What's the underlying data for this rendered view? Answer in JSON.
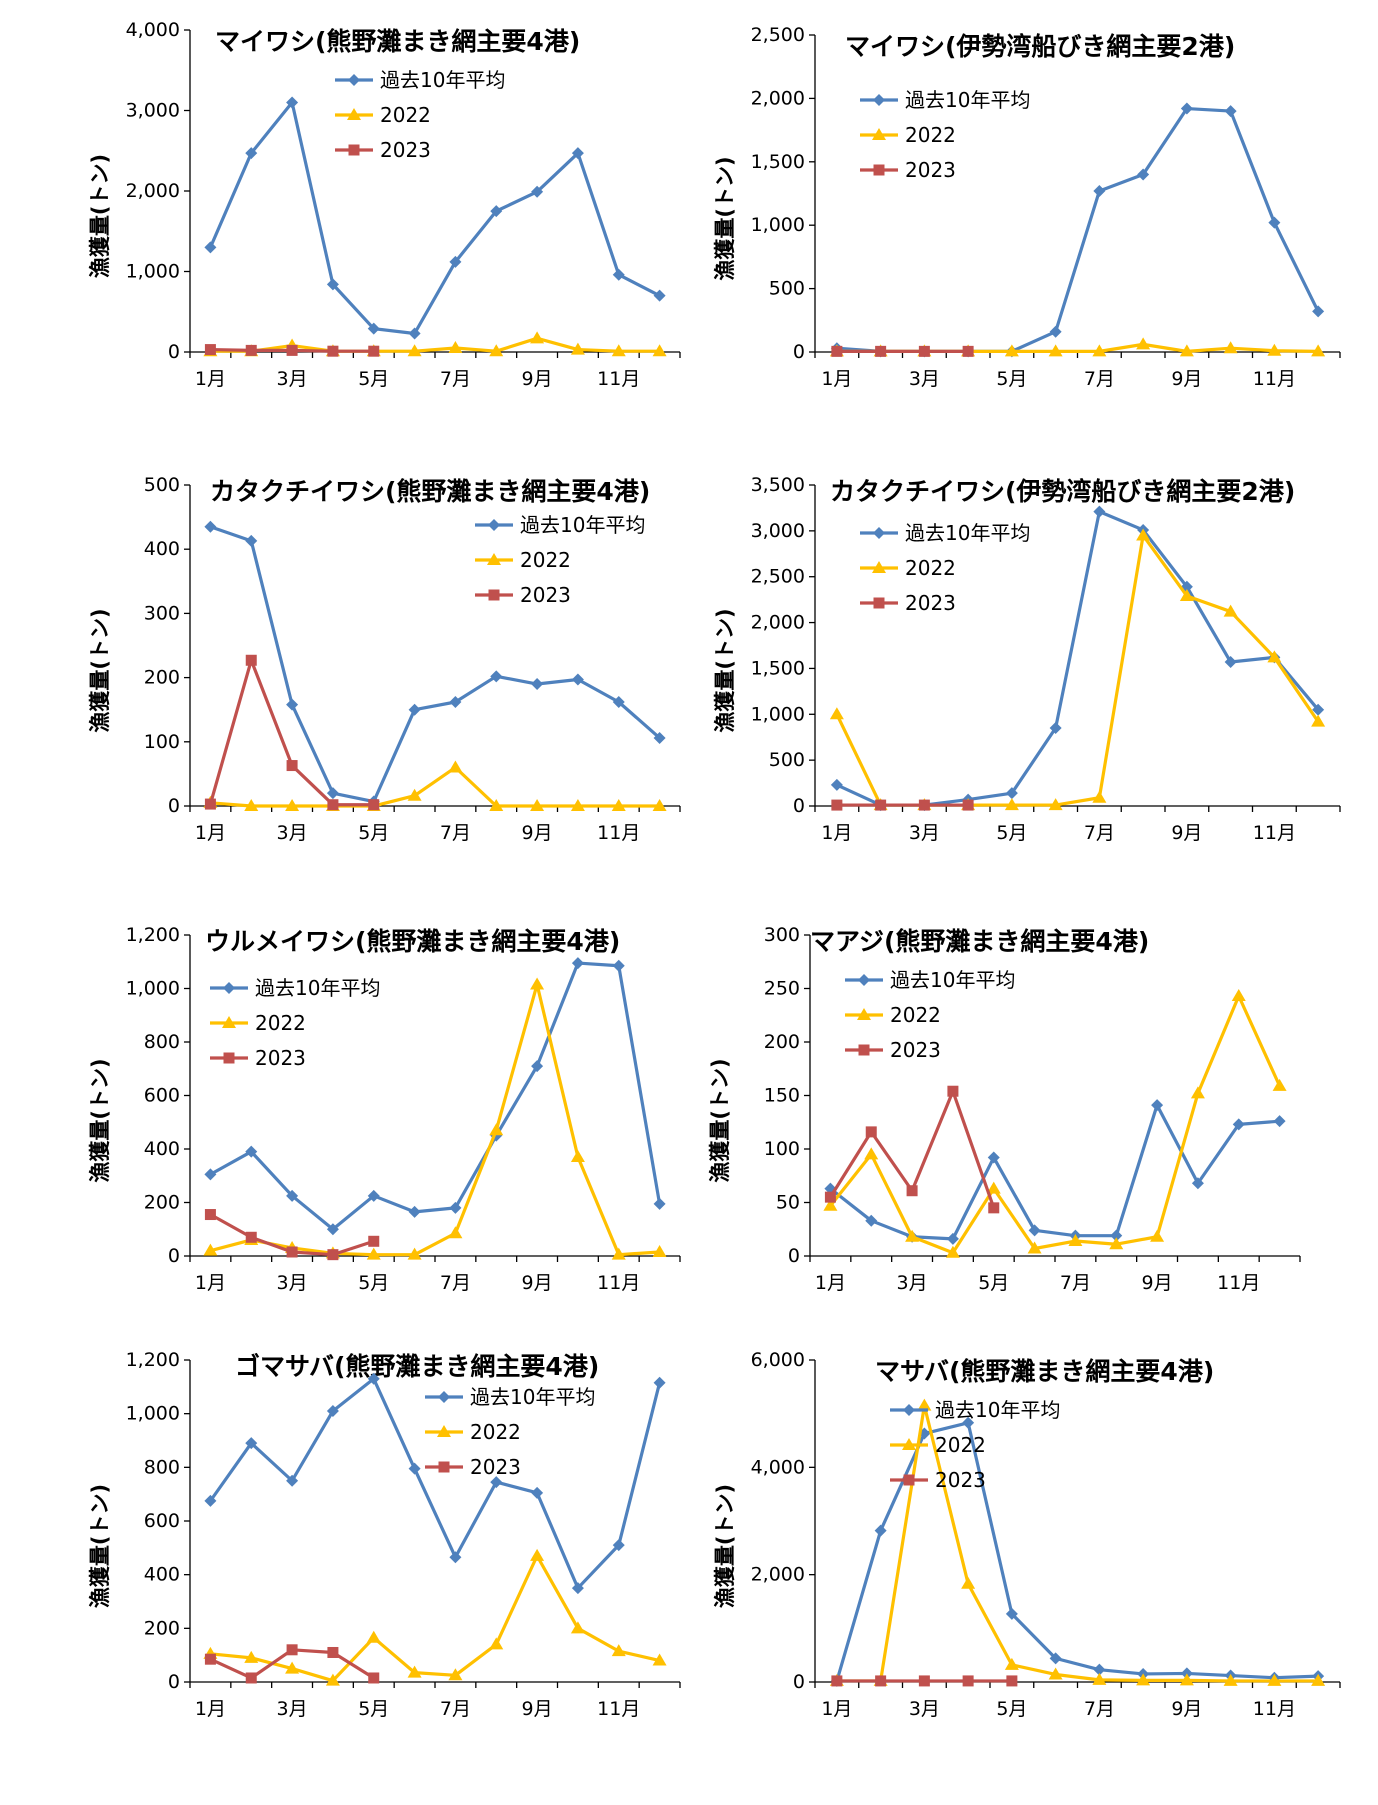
{
  "colors": {
    "avg": "#4F81BD",
    "y2022": "#FFC000",
    "y2023": "#C0504D"
  },
  "chart_data": [
    {
      "type": "line",
      "title": "マイワシ(熊野灘まき網主要4港)",
      "ylabel": "漁獲量(トン)",
      "x_ticks": [
        "1月",
        "3月",
        "5月",
        "7月",
        "9月",
        "11月"
      ],
      "y_ticks": [
        "0",
        "1,000",
        "2,000",
        "3,000",
        "4,000"
      ],
      "ylim": [
        0,
        4000
      ],
      "series": [
        {
          "name": "過去10年平均",
          "values": [
            1300,
            2470,
            3100,
            840,
            290,
            230,
            1120,
            1750,
            1990,
            2470,
            960,
            700
          ]
        },
        {
          "name": "2022",
          "values": [
            10,
            10,
            80,
            10,
            10,
            10,
            50,
            10,
            170,
            30,
            10,
            10
          ]
        },
        {
          "name": "2023",
          "values": [
            30,
            20,
            20,
            10,
            10
          ]
        }
      ]
    },
    {
      "type": "line",
      "title": "マイワシ(伊勢湾船びき網主要2港)",
      "ylabel": "漁獲量(トン)",
      "x_ticks": [
        "1月",
        "3月",
        "5月",
        "7月",
        "9月",
        "11月"
      ],
      "y_ticks": [
        "0",
        "500",
        "1,000",
        "1,500",
        "2,000",
        "2,500"
      ],
      "ylim": [
        0,
        2500
      ],
      "series": [
        {
          "name": "過去10年平均",
          "values": [
            30,
            5,
            5,
            5,
            5,
            160,
            1270,
            1400,
            1920,
            1900,
            1020,
            320
          ]
        },
        {
          "name": "2022",
          "values": [
            5,
            5,
            5,
            5,
            5,
            5,
            5,
            60,
            5,
            30,
            10,
            5
          ]
        },
        {
          "name": "2023",
          "values": [
            5,
            5,
            5,
            5
          ]
        }
      ]
    },
    {
      "type": "line",
      "title": "カタクチイワシ(熊野灘まき網主要4港)",
      "ylabel": "漁獲量(トン)",
      "x_ticks": [
        "1月",
        "3月",
        "5月",
        "7月",
        "9月",
        "11月"
      ],
      "y_ticks": [
        "0",
        "100",
        "200",
        "300",
        "400",
        "500"
      ],
      "ylim": [
        0,
        500
      ],
      "series": [
        {
          "name": "過去10年平均",
          "values": [
            435,
            413,
            158,
            20,
            7,
            150,
            162,
            202,
            190,
            197,
            162,
            106
          ]
        },
        {
          "name": "2022",
          "values": [
            5,
            0,
            0,
            0,
            0,
            16,
            60,
            0,
            0,
            0,
            0,
            0
          ]
        },
        {
          "name": "2023",
          "values": [
            3,
            227,
            63,
            2,
            2
          ]
        }
      ]
    },
    {
      "type": "line",
      "title": "カタクチイワシ(伊勢湾船びき網主要2港)",
      "ylabel": "漁獲量(トン)",
      "x_ticks": [
        "1月",
        "3月",
        "5月",
        "7月",
        "9月",
        "11月"
      ],
      "y_ticks": [
        "0",
        "500",
        "1,000",
        "1,500",
        "2,000",
        "2,500",
        "3,000",
        "3,500"
      ],
      "ylim": [
        0,
        3500
      ],
      "series": [
        {
          "name": "過去10年平均",
          "values": [
            230,
            10,
            10,
            70,
            140,
            850,
            3210,
            3010,
            2390,
            1570,
            1620,
            1050
          ]
        },
        {
          "name": "2022",
          "values": [
            1000,
            10,
            10,
            10,
            10,
            10,
            90,
            2950,
            2290,
            2120,
            1620,
            920
          ]
        },
        {
          "name": "2023",
          "values": [
            10,
            10,
            10,
            10
          ]
        }
      ]
    },
    {
      "type": "line",
      "title": "ウルメイワシ(熊野灘まき網主要4港)",
      "ylabel": "漁獲量(トン)",
      "x_ticks": [
        "1月",
        "3月",
        "5月",
        "7月",
        "9月",
        "11月"
      ],
      "y_ticks": [
        "0",
        "200",
        "400",
        "600",
        "800",
        "1,000",
        "1,200"
      ],
      "ylim": [
        0,
        1200
      ],
      "series": [
        {
          "name": "過去10年平均",
          "values": [
            305,
            390,
            225,
            100,
            225,
            165,
            180,
            450,
            710,
            1095,
            1085,
            195
          ]
        },
        {
          "name": "2022",
          "values": [
            20,
            60,
            30,
            10,
            5,
            5,
            85,
            470,
            1015,
            370,
            5,
            15
          ]
        },
        {
          "name": "2023",
          "values": [
            155,
            70,
            15,
            5,
            55
          ]
        }
      ]
    },
    {
      "type": "line",
      "title": "マアジ(熊野灘まき網主要4港)",
      "ylabel": "漁獲量(トン)",
      "x_ticks": [
        "1月",
        "3月",
        "5月",
        "7月",
        "9月",
        "11月"
      ],
      "y_ticks": [
        "0",
        "50",
        "100",
        "150",
        "200",
        "250",
        "300"
      ],
      "ylim": [
        0,
        300
      ],
      "series": [
        {
          "name": "過去10年平均",
          "values": [
            63,
            33,
            18,
            16,
            92,
            24,
            19,
            19,
            141,
            68,
            123,
            126
          ]
        },
        {
          "name": "2022",
          "values": [
            47,
            95,
            18,
            3,
            63,
            7,
            14,
            11,
            18,
            152,
            243,
            159
          ]
        },
        {
          "name": "2023",
          "values": [
            55,
            116,
            61,
            154,
            45
          ]
        }
      ]
    },
    {
      "type": "line",
      "title": "ゴマサバ(熊野灘まき網主要4港)",
      "ylabel": "漁獲量(トン)",
      "x_ticks": [
        "1月",
        "3月",
        "5月",
        "7月",
        "9月",
        "11月"
      ],
      "y_ticks": [
        "0",
        "200",
        "400",
        "600",
        "800",
        "1,000",
        "1,200"
      ],
      "ylim": [
        0,
        1200
      ],
      "series": [
        {
          "name": "過去10年平均",
          "values": [
            675,
            890,
            750,
            1010,
            1130,
            795,
            465,
            745,
            705,
            350,
            510,
            1115
          ]
        },
        {
          "name": "2022",
          "values": [
            105,
            90,
            50,
            5,
            165,
            35,
            25,
            140,
            470,
            200,
            115,
            80
          ]
        },
        {
          "name": "2023",
          "values": [
            85,
            15,
            120,
            110,
            15
          ]
        }
      ]
    },
    {
      "type": "line",
      "title": "マサバ(熊野灘まき網主要4港)",
      "ylabel": "漁獲量(トン)",
      "x_ticks": [
        "1月",
        "3月",
        "5月",
        "7月",
        "9月",
        "11月"
      ],
      "y_ticks": [
        "0",
        "2,000",
        "4,000",
        "6,000"
      ],
      "ylim": [
        0,
        6000
      ],
      "series": [
        {
          "name": "過去10年平均",
          "values": [
            20,
            2820,
            4630,
            4830,
            1270,
            440,
            230,
            150,
            160,
            120,
            80,
            110
          ]
        },
        {
          "name": "2022",
          "values": [
            20,
            20,
            5150,
            1830,
            320,
            140,
            40,
            30,
            30,
            20,
            20,
            20
          ]
        },
        {
          "name": "2023",
          "values": [
            20,
            20,
            20,
            20,
            20
          ]
        }
      ]
    }
  ]
}
